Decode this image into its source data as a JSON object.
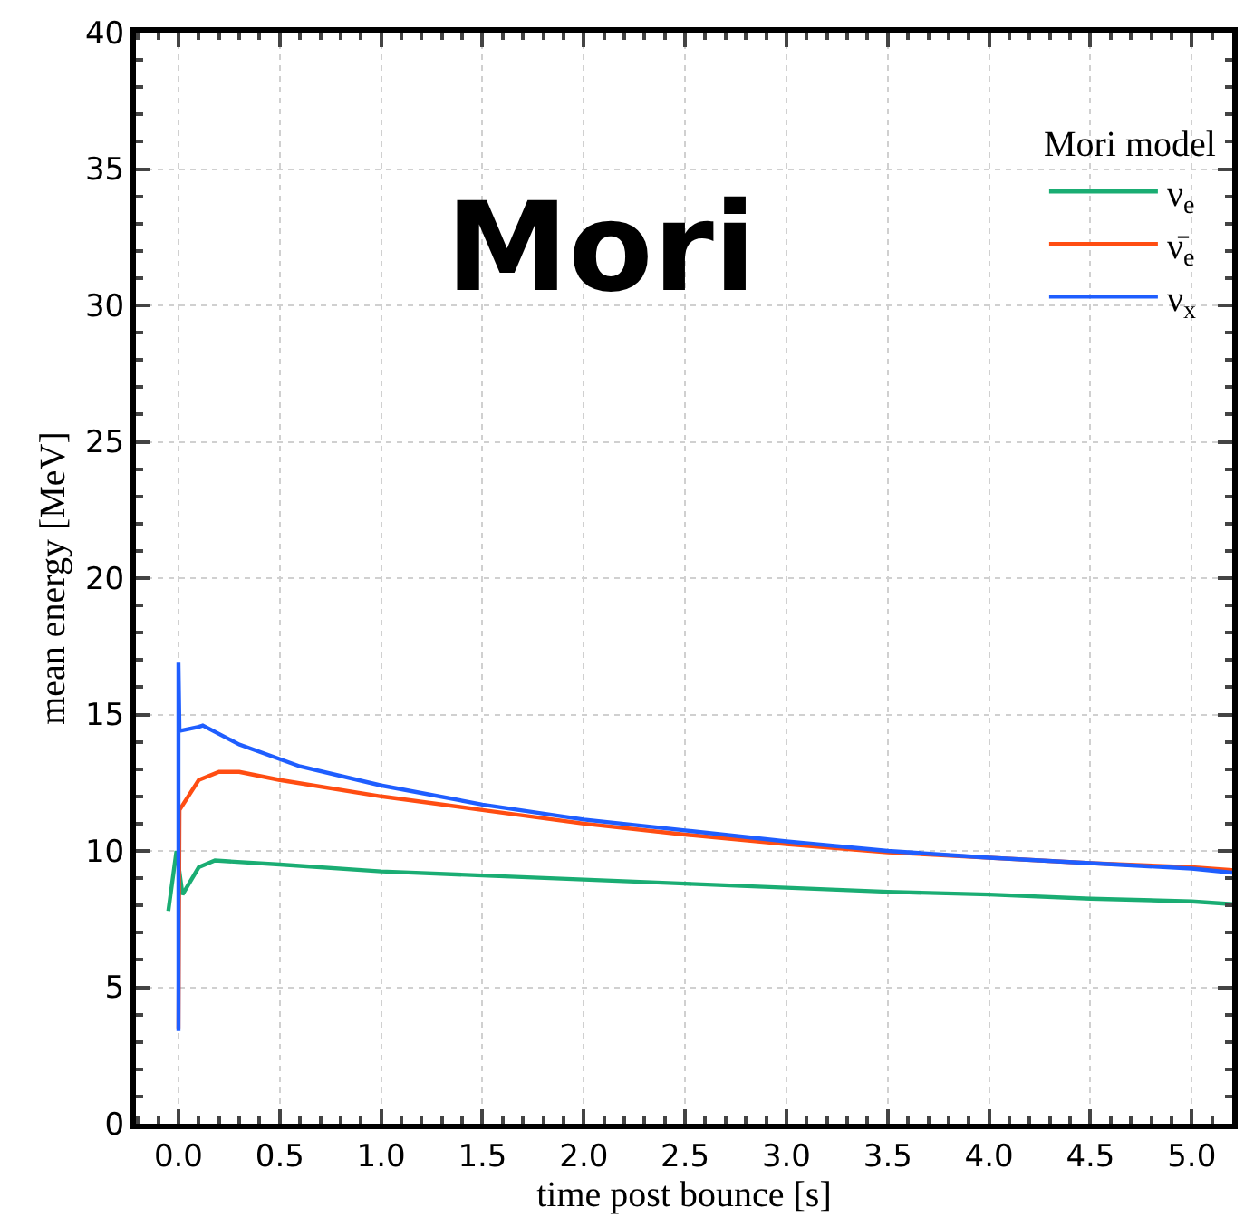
{
  "chart_data": {
    "type": "line",
    "xlabel": "time post bounce [s]",
    "ylabel": "mean energy [MeV]",
    "legend_title": "Mori model",
    "annotations": [
      "Mori"
    ],
    "xlim": [
      -0.21,
      5.2
    ],
    "xticks": [
      {
        "value": 0,
        "label": "0.0"
      },
      0.5,
      {
        "value": 1,
        "label": "1.0"
      },
      1.5,
      {
        "value": 2,
        "label": "2.0"
      },
      2.5,
      {
        "value": 3,
        "label": "3.0"
      },
      3.5,
      {
        "value": 4,
        "label": "4.0"
      },
      4.5,
      {
        "value": 5,
        "label": "5.0"
      }
    ],
    "ylim": [
      0,
      40
    ],
    "yticks": [
      0,
      5,
      10,
      15,
      20,
      25,
      30,
      35,
      40
    ],
    "grid": true,
    "legend": "top right",
    "line_style": "solid",
    "marker": "none",
    "series": [
      {
        "name": "ν$_{e}$",
        "color": "#1aad73",
        "x": [
          -0.05,
          -0.01,
          0.0,
          0.02,
          0.1,
          0.18,
          0.5,
          1.0,
          1.5,
          2.0,
          2.5,
          3.0,
          3.5,
          4.0,
          4.5,
          5.0,
          5.2
        ],
        "values": [
          7.8,
          10.0,
          9.5,
          8.4,
          9.4,
          9.65,
          9.5,
          9.25,
          9.1,
          8.95,
          8.8,
          8.65,
          8.5,
          8.4,
          8.25,
          8.15,
          8.05
        ]
      },
      {
        "name": "ν̄$_{e}$",
        "color": "#ff4d12",
        "x": [
          0.0,
          0.005,
          0.1,
          0.2,
          0.3,
          0.5,
          1.0,
          1.5,
          2.0,
          2.5,
          3.0,
          3.5,
          4.0,
          4.5,
          5.0,
          5.2
        ],
        "values": [
          3.5,
          11.5,
          12.6,
          12.9,
          12.9,
          12.6,
          12.0,
          11.5,
          11.0,
          10.6,
          10.25,
          9.95,
          9.75,
          9.55,
          9.4,
          9.3
        ]
      },
      {
        "name": "ν$_{x}$",
        "color": "#1f5eff",
        "x": [
          0.0,
          0.0,
          0.005,
          0.1,
          0.12,
          0.3,
          0.6,
          1.0,
          1.5,
          2.0,
          2.5,
          3.0,
          3.5,
          4.0,
          4.5,
          5.0,
          5.2
        ],
        "values": [
          3.4,
          16.9,
          14.4,
          14.55,
          14.6,
          13.9,
          13.1,
          12.4,
          11.7,
          11.15,
          10.75,
          10.35,
          10.0,
          9.75,
          9.55,
          9.35,
          9.2
        ]
      }
    ]
  }
}
